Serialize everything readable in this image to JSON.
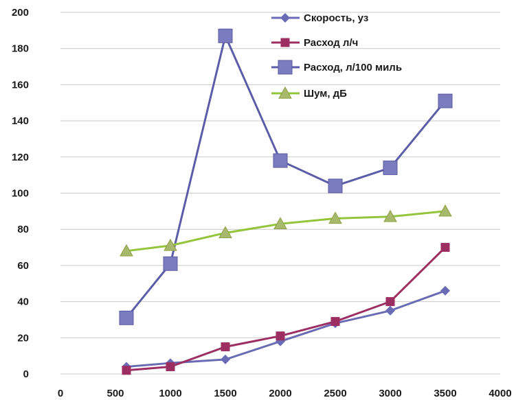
{
  "chart_data": {
    "type": "line",
    "title": "",
    "xlabel": "",
    "ylabel": "",
    "xlim": [
      0,
      4000
    ],
    "ylim": [
      0,
      200
    ],
    "x_ticks": [
      0,
      500,
      1000,
      1500,
      2000,
      2500,
      3000,
      3500,
      4000
    ],
    "y_ticks": [
      0,
      20,
      40,
      60,
      80,
      100,
      120,
      140,
      160,
      180,
      200
    ],
    "grid": "y-major",
    "legend_position": "top-right",
    "x": [
      600,
      1000,
      1500,
      2000,
      2500,
      3000,
      3500
    ],
    "series": [
      {
        "name": "Скорость, уз",
        "marker": "diamond",
        "color": "#6b6bb5",
        "marker_color": "#6b6bb5",
        "values": [
          4,
          6,
          8,
          18,
          28,
          35,
          46
        ]
      },
      {
        "name": "Расход л/ч",
        "marker": "square-small",
        "color": "#9c2e62",
        "marker_color": "#9c2e62",
        "values": [
          2,
          4,
          15,
          21,
          29,
          40,
          70
        ]
      },
      {
        "name": "Расход, л/100 миль",
        "marker": "square-large",
        "color": "#5c5ca8",
        "marker_color": "#7b7bc0",
        "values": [
          31,
          61,
          187,
          118,
          104,
          114,
          151
        ]
      },
      {
        "name": "Шум, дБ",
        "marker": "triangle",
        "color": "#94c43c",
        "marker_color": "#a8b86c",
        "values": [
          68,
          71,
          78,
          83,
          86,
          87,
          90
        ]
      }
    ]
  }
}
